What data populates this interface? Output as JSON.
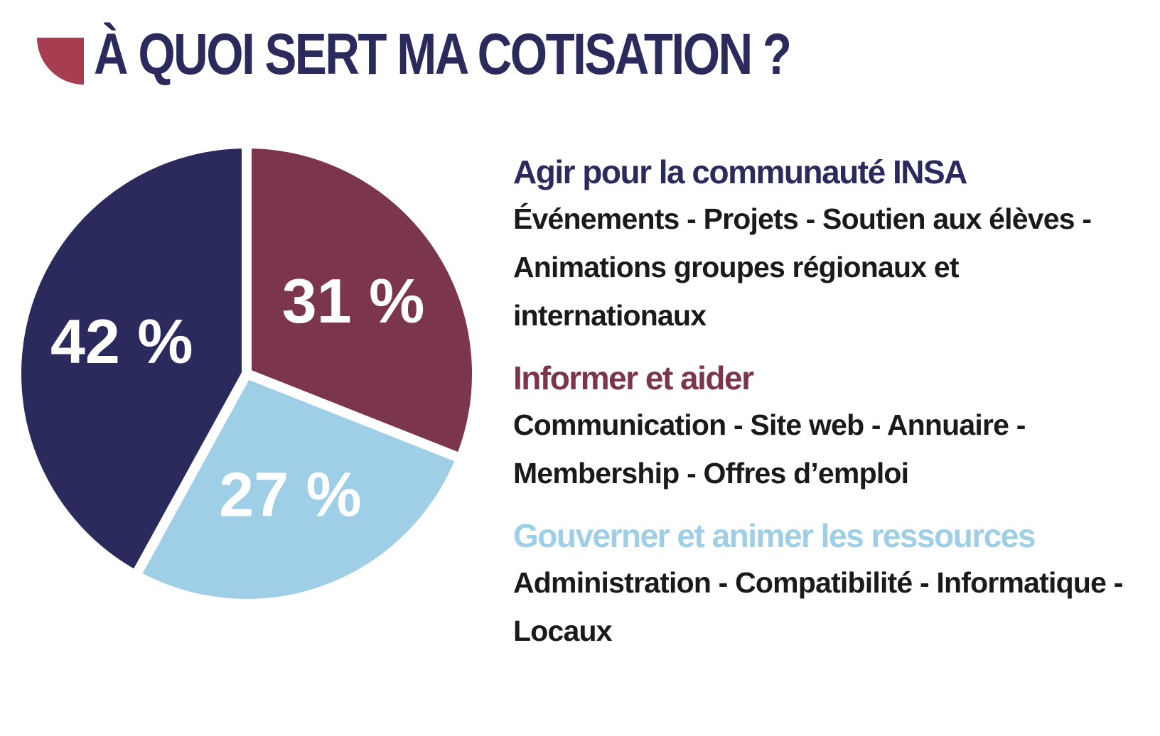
{
  "title": "À QUOI SERT MA COTISATION ?",
  "colors": {
    "navy": "#2b2a5c",
    "wine": "#7c364c",
    "light_blue": "#9ecfe6",
    "title_icon": "#a63d50"
  },
  "chart_data": {
    "type": "pie",
    "title": "À QUOI SERT MA COTISATION ?",
    "slices": [
      {
        "name": "Agir pour la communauté INSA",
        "value": 42,
        "label": "42 %",
        "color": "#2b2a5c"
      },
      {
        "name": "Informer et aider",
        "value": 31,
        "label": "31 %",
        "color": "#7c364c"
      },
      {
        "name": "Gouverner et animer les ressources",
        "value": 27,
        "label": "27 %",
        "color": "#9ecfe6"
      }
    ],
    "legend": "right"
  },
  "categories": [
    {
      "title": "Agir pour la communauté INSA",
      "desc": "Événements - Projets - Soutien aux élèves - Animations groupes régionaux et internationaux",
      "color": "#2b2a5c"
    },
    {
      "title": "Informer et aider",
      "desc": "Communication - Site web - Annuaire - Membership - Offres d’emploi",
      "color": "#7c364c"
    },
    {
      "title": "Gouverner et animer les ressources",
      "desc": "Administration - Compatibilité - Informatique - Locaux",
      "color": "#9ecfe6"
    }
  ]
}
